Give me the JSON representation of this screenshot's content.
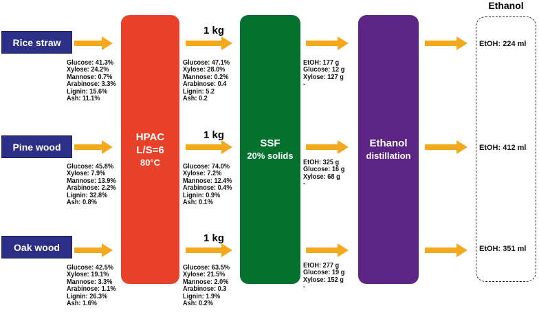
{
  "feedstocks": [
    {
      "name": "Rice straw",
      "raw": [
        "Glucose: 41.3%",
        "Xylose: 24.2%",
        "Mannose: 0.7%",
        "Arabinose: 3.3%",
        "Lignin: 15.6%",
        "Ash: 11.1%"
      ],
      "pretreated_mass": "1 kg",
      "pretreated": [
        "Glucose: 47.1%",
        "Xylose: 28.0%",
        "Mannose: 0.2%",
        "Arabinose: 0.4",
        "Lignin: 5.2",
        "Ash: 0.2"
      ],
      "ssf_out": [
        "EtOH: 177 g",
        "Glucose: 12 g",
        "Xylose: 127 g",
        "-"
      ],
      "ethanol": "EtOH: 224 ml"
    },
    {
      "name": "Pine wood",
      "raw": [
        "Glucose: 45.8%",
        "Xylose: 7.9%",
        "Mannose: 13.9%",
        "Arabinose: 2.2%",
        "Lignin: 32.8%",
        "Ash: 0.8%"
      ],
      "pretreated_mass": "1 kg",
      "pretreated": [
        "Glucose: 74.0%",
        "Xylose: 7.2%",
        "Mannose: 12.4%",
        "Arabinose: 0.4%",
        "Lignin: 0.9%",
        "Ash: 0.1%"
      ],
      "ssf_out": [
        "EtOH: 325 g",
        "Glucose: 16 g",
        "Xylose: 68 g",
        "-"
      ],
      "ethanol": "EtOH: 412 ml"
    },
    {
      "name": "Oak wood",
      "raw": [
        "Glucose: 42.5%",
        "Xylose: 19.1%",
        "Mannose: 3.3%",
        "Arabinose: 1.1%",
        "Lignin: 26.3%",
        "Ash: 1.6%"
      ],
      "pretreated_mass": "1 kg",
      "pretreated": [
        "Glucose: 63.5%",
        "Xylose: 21.5%",
        "Mannose: 2.0%",
        "Arabinose: 0.3",
        "Lignin: 1.9%",
        "Ash: 0.2%"
      ],
      "ssf_out": [
        "EtOH: 277 g",
        "Glucose: 19 g",
        "Xylose: 152 g",
        "-"
      ],
      "ethanol": "EtOH: 351 ml"
    }
  ],
  "processes": {
    "hpac": {
      "title": "HPAC",
      "line2": "L/S=6",
      "line3": "80°C",
      "color": "#e8412a"
    },
    "ssf": {
      "title": "SSF",
      "line2": "20% solids",
      "color": "#04712f"
    },
    "distillation": {
      "title": "Ethanol",
      "line2": "distillation",
      "color": "#5b2485"
    }
  },
  "output_title": "Ethanol",
  "colors": {
    "feed_box": "#2c2f86",
    "arrow": "#f4a81b"
  }
}
